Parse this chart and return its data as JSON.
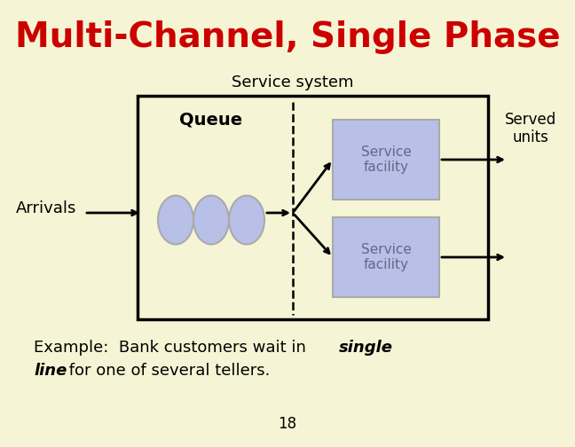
{
  "bg_color": "#f5f5d5",
  "title": "Multi-Channel, Single Phase",
  "title_color": "#cc0000",
  "title_fontsize": 28,
  "service_system_label": "Service system",
  "arrivals_label": "Arrivals",
  "queue_label": "Queue",
  "served_units_label": "Served\nunits",
  "service_facility_label": "Service\nfacility",
  "example_line1_normal": "Example:  Bank customers wait in ",
  "example_line1_bold": "single",
  "example_line2_bold": "line",
  "example_line2_normal": " for one of several tellers.",
  "page_number": "18",
  "box_color": "#b8c0e8",
  "box_border_color": "#999999",
  "circle_color": "#b8c0e8",
  "circle_edge_color": "#aaaaaa"
}
